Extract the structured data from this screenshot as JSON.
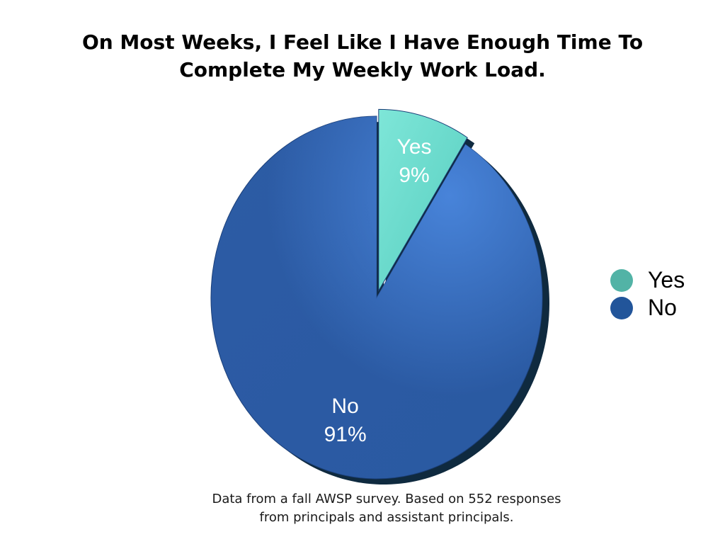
{
  "title_lines": [
    "On Most Weeks, I Feel Like I Have Enough Time To",
    "Complete My Weekly Work Load."
  ],
  "note_lines": [
    "Data from a fall AWSP survey. Based on 552 responses",
    "from principals and assistant principals."
  ],
  "chart_data": {
    "type": "pie",
    "title": "On Most Weeks, I Feel Like I Have Enough Time To Complete My Weekly Work Load.",
    "slices": [
      {
        "name": "Yes",
        "value": 9,
        "label": "9%",
        "color": "#5fd6c8",
        "exploded": true
      },
      {
        "name": "No",
        "value": 91,
        "label": "91%",
        "color": "#2f62ae",
        "exploded": false
      }
    ],
    "legend": {
      "placement": "right",
      "entries": [
        {
          "name": "Yes",
          "color": "#52b3a6"
        },
        {
          "name": "No",
          "color": "#22559a"
        }
      ]
    }
  }
}
